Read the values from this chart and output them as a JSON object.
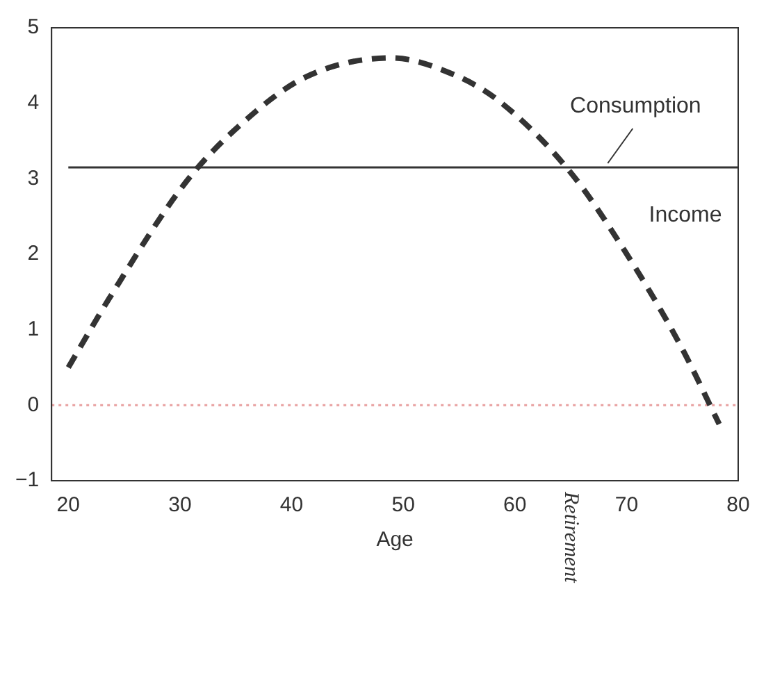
{
  "chart_data": {
    "type": "line",
    "xlabel": "Age",
    "xlim": [
      18.5,
      80
    ],
    "xticks": [
      20,
      30,
      40,
      50,
      60,
      70,
      80
    ],
    "ylim": [
      -1,
      5
    ],
    "yticks": [
      -1,
      0,
      1,
      2,
      3,
      4,
      5
    ],
    "grid": false,
    "legend": false,
    "marker": "none",
    "series": [
      {
        "name": "Income",
        "color": "#333333",
        "line_style": "dashed",
        "x": [
          20,
          23.6,
          30.5,
          35.3,
          41.3,
          49,
          54.2,
          58.4,
          64.9,
          69.6,
          74.8,
          78.3
        ],
        "values": [
          0.5,
          1.4,
          2.95,
          3.7,
          4.35,
          4.6,
          4.4,
          4.05,
          3.1,
          2.1,
          0.8,
          -0.25
        ]
      },
      {
        "name": "Consumption",
        "color": "#333333",
        "line_style": "solid",
        "x": [
          20,
          80
        ],
        "values": [
          3.15,
          3.15
        ]
      }
    ],
    "ref_lines": [
      {
        "axis": "y",
        "value": 0,
        "color": "#e8a0a0",
        "line_style": "dotted"
      }
    ],
    "annotations": [
      "Retirement"
    ]
  }
}
